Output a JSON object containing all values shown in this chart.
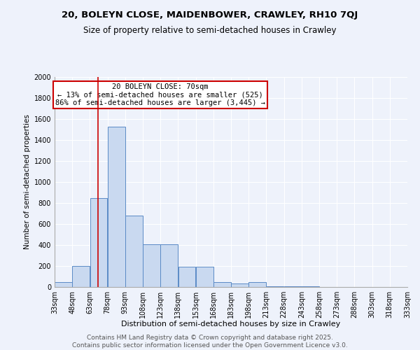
{
  "title1": "20, BOLEYN CLOSE, MAIDENBOWER, CRAWLEY, RH10 7QJ",
  "title2": "Size of property relative to semi-detached houses in Crawley",
  "xlabel": "Distribution of semi-detached houses by size in Crawley",
  "ylabel": "Number of semi-detached properties",
  "annotation_line1": "20 BOLEYN CLOSE: 70sqm",
  "annotation_line2": "← 13% of semi-detached houses are smaller (525)",
  "annotation_line3": "86% of semi-detached houses are larger (3,445) →",
  "property_size": 70,
  "bar_color": "#c9d9f0",
  "bar_edge_color": "#5a8ac6",
  "line_color": "#cc0000",
  "annotation_box_color": "#cc0000",
  "background_color": "#eef2fb",
  "bins": [
    33,
    48,
    63,
    78,
    93,
    108,
    123,
    138,
    153,
    168,
    183,
    198,
    213,
    228,
    243,
    258,
    273,
    288,
    303,
    318,
    333
  ],
  "counts": [
    50,
    200,
    850,
    1525,
    680,
    410,
    410,
    195,
    195,
    50,
    35,
    50,
    10,
    10,
    5,
    3,
    2,
    2,
    1,
    1
  ],
  "ylim": [
    0,
    2000
  ],
  "yticks": [
    0,
    200,
    400,
    600,
    800,
    1000,
    1200,
    1400,
    1600,
    1800,
    2000
  ],
  "footer1": "Contains HM Land Registry data © Crown copyright and database right 2025.",
  "footer2": "Contains public sector information licensed under the Open Government Licence v3.0.",
  "title1_fontsize": 9.5,
  "title2_fontsize": 8.5,
  "xlabel_fontsize": 8,
  "ylabel_fontsize": 7.5,
  "tick_fontsize": 7,
  "footer_fontsize": 6.5,
  "annotation_fontsize": 7.5
}
